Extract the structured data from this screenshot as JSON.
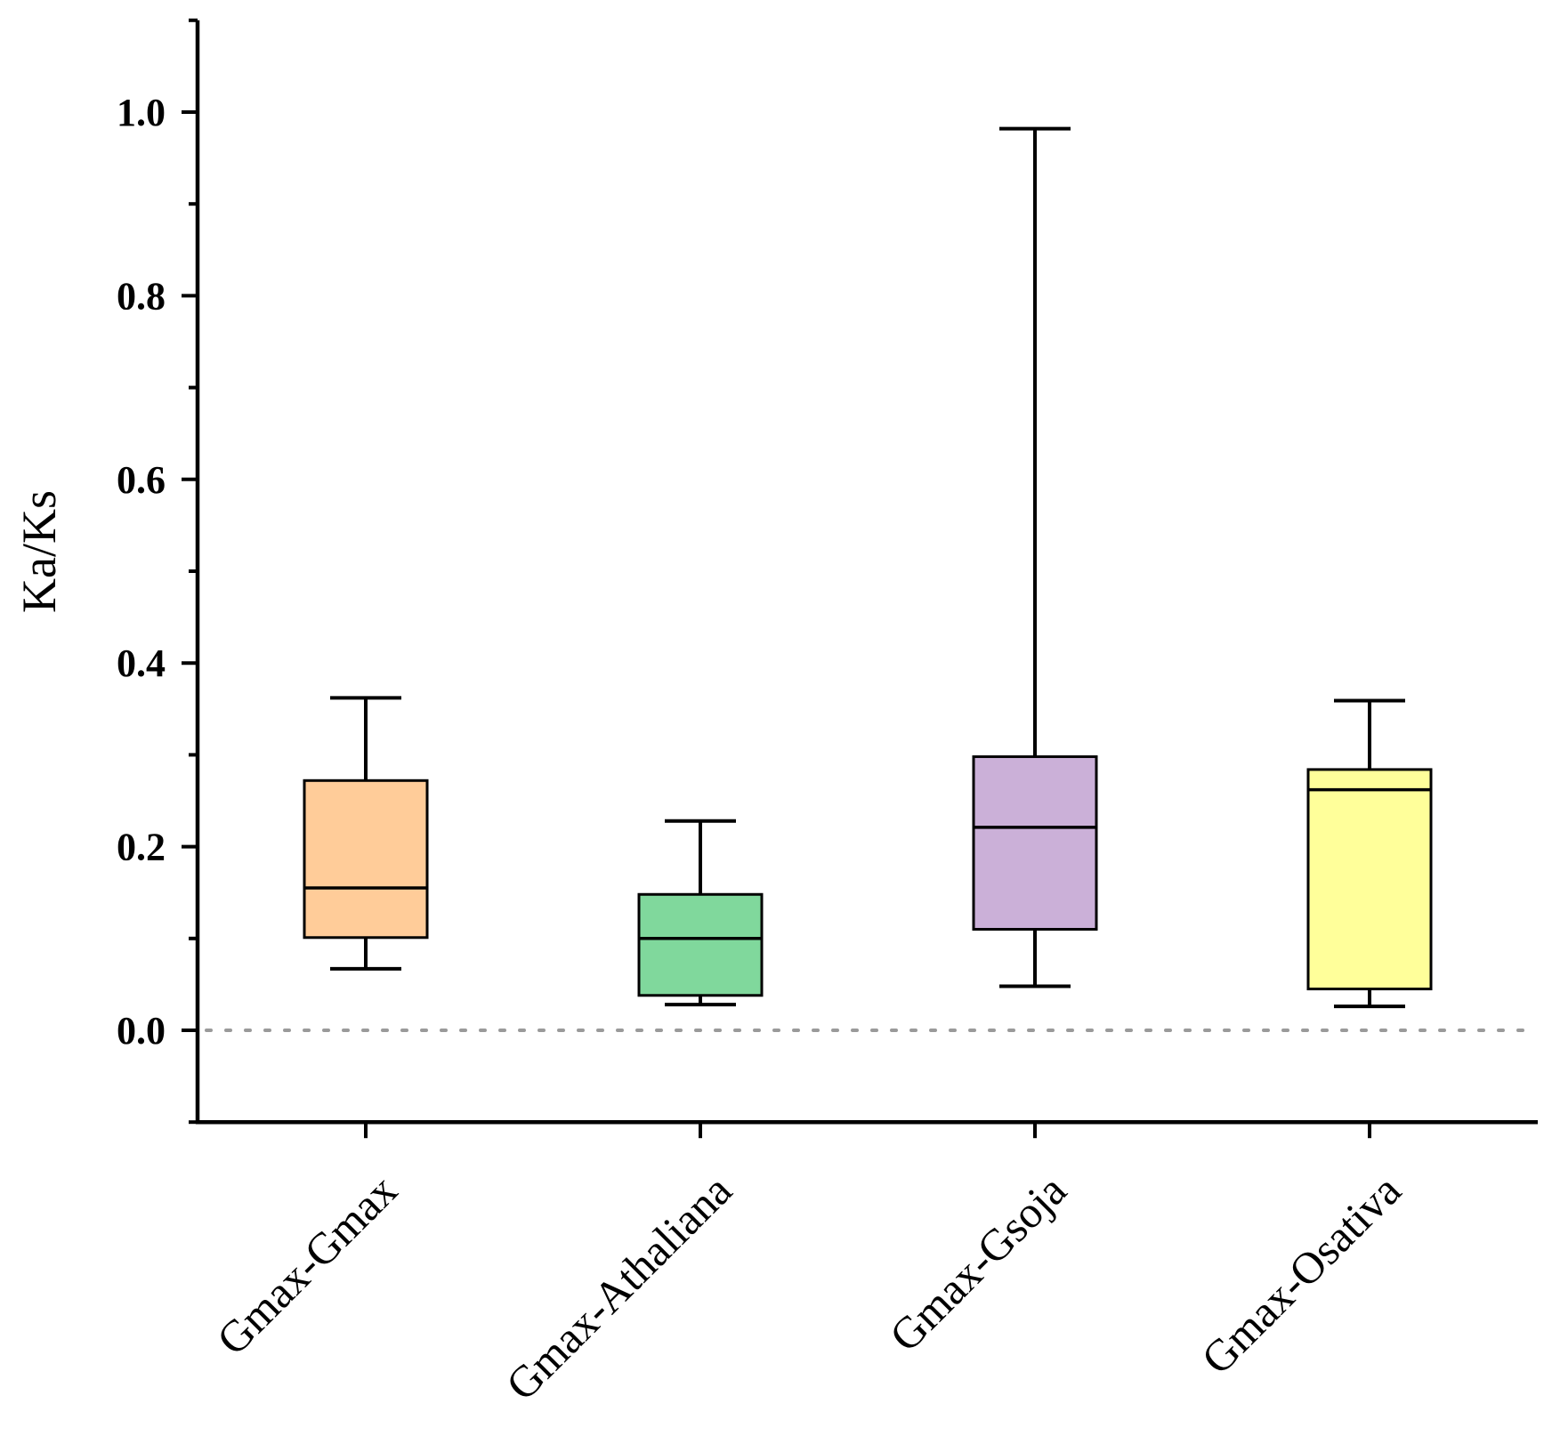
{
  "chart_data": {
    "type": "box",
    "title": "",
    "xlabel": "",
    "ylabel": "Ka/Ks",
    "ylim": [
      -0.1,
      1.1
    ],
    "yticks": [
      {
        "value": 0.0,
        "label": "0.0"
      },
      {
        "value": 0.2,
        "label": "0.2"
      },
      {
        "value": 0.4,
        "label": "0.4"
      },
      {
        "value": 0.6,
        "label": "0.6"
      },
      {
        "value": 0.8,
        "label": "0.8"
      },
      {
        "value": 1.0,
        "label": "1.0"
      }
    ],
    "minor_yticks": [
      -0.1,
      0.1,
      0.3,
      0.5,
      0.7,
      0.9,
      1.1
    ],
    "reference_line": 0.0,
    "categories": [
      "Gmax-Gmax",
      "Gmax-Athaliana",
      "Gmax-Gsoja",
      "Gmax-Osativa"
    ],
    "boxes": [
      {
        "name": "Gmax-Gmax",
        "min": 0.067,
        "q1": 0.101,
        "median": 0.155,
        "q3": 0.272,
        "max": 0.362,
        "color": "#FFCC99"
      },
      {
        "name": "Gmax-Athaliana",
        "min": 0.028,
        "q1": 0.038,
        "median": 0.1,
        "q3": 0.148,
        "max": 0.228,
        "color": "#80D89C"
      },
      {
        "name": "Gmax-Gsoja",
        "min": 0.048,
        "q1": 0.11,
        "median": 0.221,
        "q3": 0.298,
        "max": 0.982,
        "color": "#CBB0D8"
      },
      {
        "name": "Gmax-Osativa",
        "min": 0.026,
        "q1": 0.045,
        "median": 0.262,
        "q3": 0.284,
        "max": 0.359,
        "color": "#FFFF9A"
      }
    ]
  }
}
